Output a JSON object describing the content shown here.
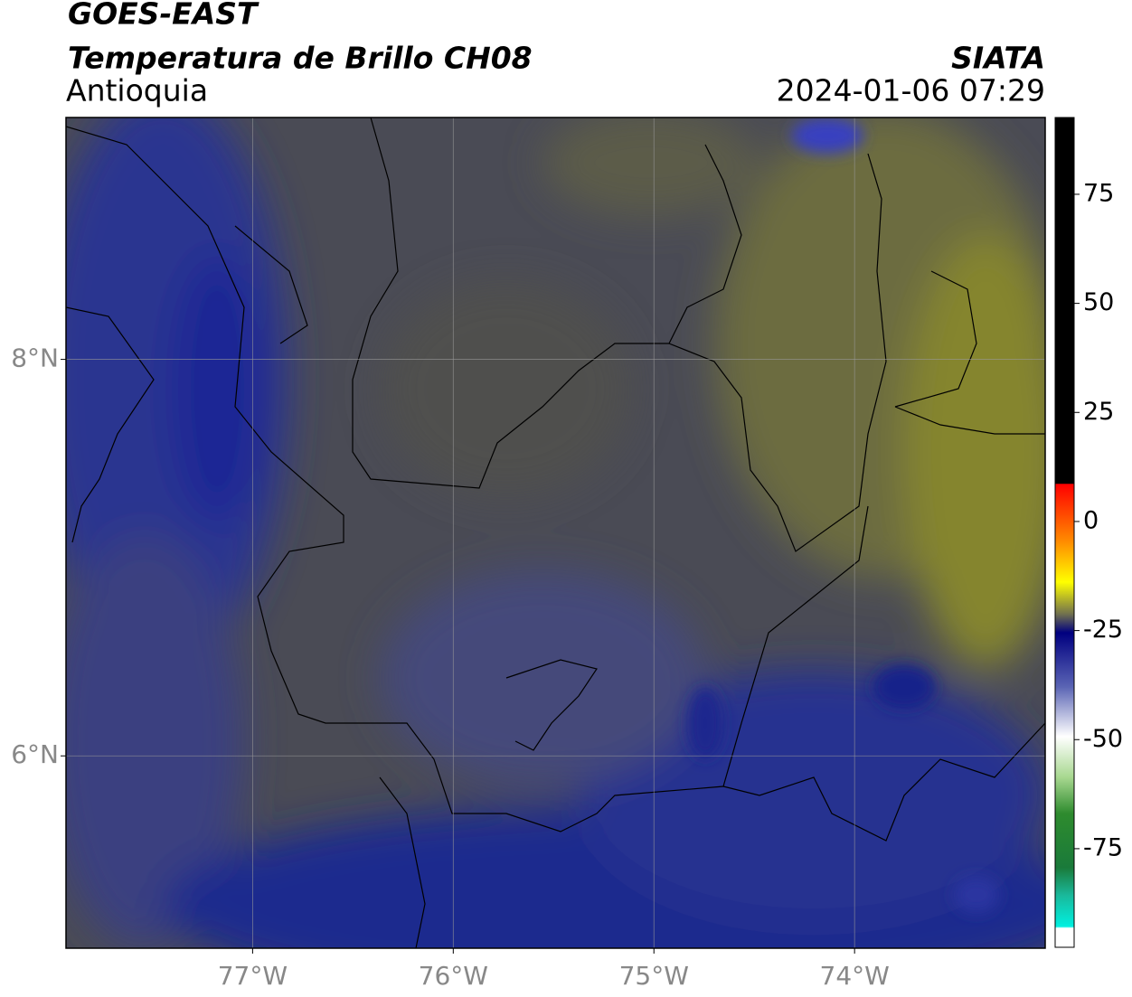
{
  "header": {
    "title": "GOES-EAST",
    "subtitle": "Temperatura de Brillo CH08",
    "region": "Antioquia",
    "source": "SIATA",
    "datetime": "2024-01-06 07:29"
  },
  "map": {
    "xlim": [
      -77.93,
      -73.05
    ],
    "ylim": [
      5.03,
      9.22
    ],
    "xticks": [
      {
        "value": -77,
        "label": "77°W"
      },
      {
        "value": -76,
        "label": "76°W"
      },
      {
        "value": -75,
        "label": "75°W"
      },
      {
        "value": -74,
        "label": "74°W"
      }
    ],
    "yticks": [
      {
        "value": 8,
        "label": "8°N"
      },
      {
        "value": 6,
        "label": "6°N"
      }
    ],
    "grid": true
  },
  "colorbar": {
    "lim": [
      -97.6,
      92.6
    ],
    "ticks": [
      75,
      50,
      25,
      0,
      -25,
      -50,
      -75
    ]
  }
}
